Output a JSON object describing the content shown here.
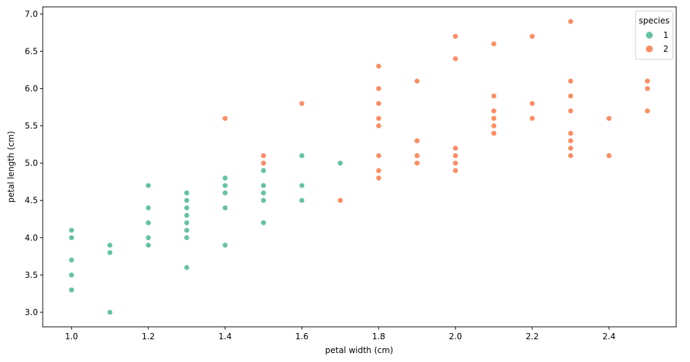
{
  "chart_data": {
    "type": "scatter",
    "title": "",
    "xlabel": "petal width (cm)",
    "ylabel": "petal length (cm)",
    "xlim": [
      0.925,
      2.575
    ],
    "ylim": [
      2.805,
      7.095
    ],
    "xticks": [
      "1.0",
      "1.2",
      "1.4",
      "1.6",
      "1.8",
      "2.0",
      "2.2",
      "2.4"
    ],
    "yticks": [
      "3.0",
      "3.5",
      "4.0",
      "4.5",
      "5.0",
      "5.5",
      "6.0",
      "6.5",
      "7.0"
    ],
    "grid": false,
    "legend": {
      "title": "species",
      "placement": "top-right",
      "entries": [
        {
          "label": "1",
          "color": "#66c2a5"
        },
        {
          "label": "2",
          "color": "#fc8d62"
        }
      ]
    },
    "series": [
      {
        "name": "1",
        "color": "#66c2a5",
        "points": [
          [
            1.0,
            4.1
          ],
          [
            1.0,
            4.0
          ],
          [
            1.0,
            3.7
          ],
          [
            1.0,
            3.5
          ],
          [
            1.0,
            3.3
          ],
          [
            1.1,
            3.9
          ],
          [
            1.1,
            3.8
          ],
          [
            1.1,
            3.0
          ],
          [
            1.2,
            4.7
          ],
          [
            1.2,
            4.4
          ],
          [
            1.2,
            4.2
          ],
          [
            1.2,
            4.0
          ],
          [
            1.2,
            3.9
          ],
          [
            1.3,
            4.6
          ],
          [
            1.3,
            4.5
          ],
          [
            1.3,
            4.4
          ],
          [
            1.3,
            4.3
          ],
          [
            1.3,
            4.2
          ],
          [
            1.3,
            4.1
          ],
          [
            1.3,
            4.0
          ],
          [
            1.3,
            3.6
          ],
          [
            1.4,
            4.8
          ],
          [
            1.4,
            4.7
          ],
          [
            1.4,
            4.6
          ],
          [
            1.4,
            4.4
          ],
          [
            1.4,
            3.9
          ],
          [
            1.5,
            4.9
          ],
          [
            1.5,
            4.7
          ],
          [
            1.5,
            4.6
          ],
          [
            1.5,
            4.5
          ],
          [
            1.5,
            4.2
          ],
          [
            1.6,
            5.1
          ],
          [
            1.6,
            4.7
          ],
          [
            1.6,
            4.5
          ],
          [
            1.7,
            5.0
          ]
        ]
      },
      {
        "name": "2",
        "color": "#fc8d62",
        "points": [
          [
            1.4,
            5.6
          ],
          [
            1.5,
            5.1
          ],
          [
            1.5,
            5.0
          ],
          [
            1.6,
            5.8
          ],
          [
            1.7,
            4.5
          ],
          [
            1.8,
            6.3
          ],
          [
            1.8,
            6.0
          ],
          [
            1.8,
            5.8
          ],
          [
            1.8,
            5.6
          ],
          [
            1.8,
            5.5
          ],
          [
            1.8,
            5.1
          ],
          [
            1.8,
            4.9
          ],
          [
            1.8,
            4.8
          ],
          [
            1.9,
            6.1
          ],
          [
            1.9,
            5.3
          ],
          [
            1.9,
            5.1
          ],
          [
            1.9,
            5.0
          ],
          [
            2.0,
            6.7
          ],
          [
            2.0,
            6.4
          ],
          [
            2.0,
            5.2
          ],
          [
            2.0,
            5.1
          ],
          [
            2.0,
            5.0
          ],
          [
            2.0,
            4.9
          ],
          [
            2.1,
            6.6
          ],
          [
            2.1,
            5.9
          ],
          [
            2.1,
            5.7
          ],
          [
            2.1,
            5.6
          ],
          [
            2.1,
            5.5
          ],
          [
            2.1,
            5.4
          ],
          [
            2.2,
            6.7
          ],
          [
            2.2,
            5.8
          ],
          [
            2.2,
            5.6
          ],
          [
            2.3,
            6.9
          ],
          [
            2.3,
            6.1
          ],
          [
            2.3,
            5.9
          ],
          [
            2.3,
            5.7
          ],
          [
            2.3,
            5.4
          ],
          [
            2.3,
            5.3
          ],
          [
            2.3,
            5.2
          ],
          [
            2.3,
            5.1
          ],
          [
            2.4,
            5.6
          ],
          [
            2.4,
            5.1
          ],
          [
            2.5,
            6.1
          ],
          [
            2.5,
            6.0
          ],
          [
            2.5,
            5.7
          ]
        ]
      }
    ]
  }
}
